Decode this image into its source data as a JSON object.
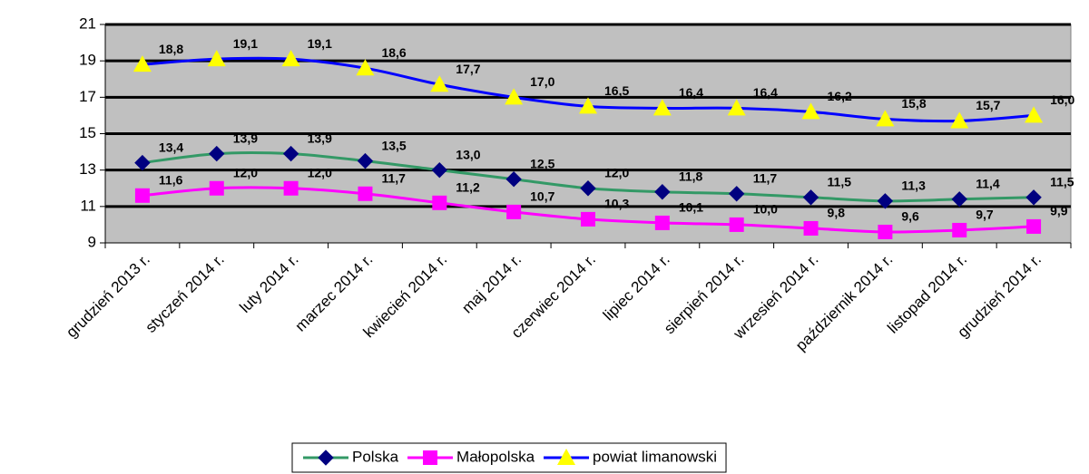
{
  "chart_data": {
    "type": "line",
    "categories": [
      "grudzień 2013 r.",
      "styczeń 2014 r.",
      "luty 2014 r.",
      "marzec 2014 r.",
      "kwiecień 2014 r.",
      "maj 2014 r.",
      "czerwiec 2014 r.",
      "lipiec 2014 r.",
      "sierpień 2014 r.",
      "wrzesień 2014 r.",
      "październik 2014 r.",
      "listopad 2014 r.",
      "grudzień 2014 r."
    ],
    "series": [
      {
        "name": "Polska",
        "color": "#339966",
        "marker": "diamond",
        "marker_color": "#000080",
        "values": [
          13.4,
          13.9,
          13.9,
          13.5,
          13.0,
          12.5,
          12.0,
          11.8,
          11.7,
          11.5,
          11.3,
          11.4,
          11.5
        ],
        "value_labels": [
          "13,4",
          "13,9",
          "13,9",
          "13,5",
          "13,0",
          "12,5",
          "12,0",
          "11,8",
          "11,7",
          "11,5",
          "11,3",
          "11,4",
          "11,5"
        ]
      },
      {
        "name": "Małopolska",
        "color": "#ff00ff",
        "marker": "square",
        "marker_color": "#ff00ff",
        "values": [
          11.6,
          12.0,
          12.0,
          11.7,
          11.2,
          10.7,
          10.3,
          10.1,
          10.0,
          9.8,
          9.6,
          9.7,
          9.9
        ],
        "value_labels": [
          "11,6",
          "12,0",
          "12,0",
          "11,7",
          "11,2",
          "10,7",
          "10,3",
          "10,1",
          "10,0",
          "9,8",
          "9,6",
          "9,7",
          "9,9"
        ]
      },
      {
        "name": "powiat limanowski",
        "color": "#0000ff",
        "marker": "triangle",
        "marker_color": "#ffff00",
        "values": [
          18.8,
          19.1,
          19.1,
          18.6,
          17.7,
          17.0,
          16.5,
          16.4,
          16.4,
          16.2,
          15.8,
          15.7,
          16.0
        ],
        "value_labels": [
          "18,8",
          "19,1",
          "19,1",
          "18,6",
          "17,7",
          "17,0",
          "16,5",
          "16,4",
          "16,4",
          "16,2",
          "15,8",
          "15,7",
          "16,0"
        ]
      }
    ],
    "ylim": [
      9,
      21
    ],
    "yticks": [
      9,
      11,
      13,
      15,
      17,
      19,
      21
    ],
    "grid": true,
    "smooth": true,
    "plot_background": "#c0c0c0",
    "legend": "bottom"
  }
}
